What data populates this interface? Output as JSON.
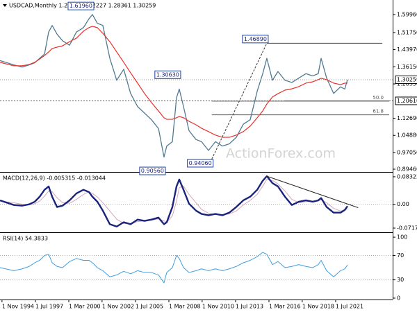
{
  "chart_data": {
    "type": "line",
    "title": "USDCAD,Monthly  1.28714 1.32227 1.28361 1.30259",
    "watermark": "ActionForex.com",
    "x": [
      1994.67,
      1995.78,
      1996.45,
      1997.0,
      1997.45,
      1997.84,
      1998.23,
      1998.56,
      1998.84,
      1999.23,
      1999.67,
      2000.23,
      2000.78,
      2001.34,
      2001.78,
      2002.06,
      2002.45,
      2002.89,
      2003.45,
      2004.0,
      2004.56,
      2005.11,
      2005.67,
      2006.23,
      2006.78,
      2007.34,
      2007.78,
      2008.0,
      2008.45,
      2008.78,
      2009.0,
      2009.34,
      2009.78,
      2010.34,
      2010.78,
      2011.34,
      2011.89,
      2012.45,
      2013.0,
      2013.56,
      2014.12,
      2014.67,
      2015.23,
      2015.67,
      2016.0,
      2016.45,
      2016.89,
      2017.45,
      2018.0,
      2018.56,
      2019.12,
      2019.67,
      2020.11,
      2020.34,
      2020.78,
      2021.34,
      2021.89,
      2022.23,
      2022.45
    ],
    "xlim": [
      1994.67,
      2026.06
    ],
    "xticks": [
      {
        "value": 1994.83,
        "label": "1 Nov 1994"
      },
      {
        "value": 1997.5,
        "label": "1 Jul 1997"
      },
      {
        "value": 2000.17,
        "label": "1 Mar 2000"
      },
      {
        "value": 2002.83,
        "label": "1 Nov 2002"
      },
      {
        "value": 2005.5,
        "label": "1 Jul 2005"
      },
      {
        "value": 2008.17,
        "label": "1 Mar 2008"
      },
      {
        "value": 2010.83,
        "label": "1 Nov 2010"
      },
      {
        "value": 2013.5,
        "label": "1 Jul 2013"
      },
      {
        "value": 2016.17,
        "label": "1 Mar 2016"
      },
      {
        "value": 2018.83,
        "label": "1 Nov 2018"
      },
      {
        "value": 2021.5,
        "label": "1 Jul 2021"
      }
    ],
    "ylim": [
      0.882,
      1.666
    ],
    "yticks": [
      {
        "value": 1.5996,
        "label": "1.59960"
      },
      {
        "value": 1.5175,
        "label": "1.51750"
      },
      {
        "value": 1.4397,
        "label": "1.43970"
      },
      {
        "value": 1.3615,
        "label": "1.36150"
      },
      {
        "value": 1.2833,
        "label": "1.28330"
      },
      {
        "value": 1.1269,
        "label": "1.12690"
      },
      {
        "value": 1.0488,
        "label": "1.04880"
      },
      {
        "value": 0.9705,
        "label": "0.97050"
      },
      {
        "value": 0.8946,
        "label": "0.89460"
      }
    ],
    "series": [
      {
        "color": "#4f7a92",
        "values": [
          1.39,
          1.37,
          1.36,
          1.37,
          1.38,
          1.4,
          1.42,
          1.52,
          1.55,
          1.51,
          1.48,
          1.46,
          1.52,
          1.54,
          1.58,
          1.6,
          1.56,
          1.55,
          1.4,
          1.3,
          1.35,
          1.24,
          1.18,
          1.15,
          1.12,
          1.08,
          0.95,
          1.0,
          1.02,
          1.22,
          1.26,
          1.18,
          1.07,
          1.03,
          1.02,
          0.98,
          1.02,
          1.0,
          1.01,
          1.04,
          1.1,
          1.12,
          1.25,
          1.33,
          1.4,
          1.3,
          1.34,
          1.3,
          1.29,
          1.31,
          1.33,
          1.32,
          1.33,
          1.4,
          1.31,
          1.24,
          1.27,
          1.26,
          1.30259
        ]
      },
      {
        "color": "#e8302a",
        "values": [
          1.382,
          1.366,
          1.366,
          1.372,
          1.382,
          1.397,
          1.413,
          1.429,
          1.445,
          1.451,
          1.457,
          1.476,
          1.492,
          1.524,
          1.54,
          1.546,
          1.54,
          1.514,
          1.476,
          1.429,
          1.382,
          1.334,
          1.287,
          1.239,
          1.198,
          1.16,
          1.129,
          1.122,
          1.122,
          1.129,
          1.135,
          1.129,
          1.113,
          1.097,
          1.081,
          1.066,
          1.05,
          1.04,
          1.04,
          1.05,
          1.066,
          1.091,
          1.129,
          1.16,
          1.192,
          1.224,
          1.239,
          1.255,
          1.261,
          1.271,
          1.287,
          1.293,
          1.303,
          1.309,
          1.303,
          1.287,
          1.28,
          1.287,
          1.287
        ]
      }
    ],
    "current": {
      "value": 1.30259,
      "label": "1.30259"
    },
    "support": {
      "value": 1.2061,
      "label": "1.20610"
    },
    "annotations": [
      {
        "x": 2002.06,
        "value": 1.6196,
        "label": "1.61960",
        "kind": "high"
      },
      {
        "x": 2009.0,
        "value": 1.3063,
        "label": "1.30630",
        "kind": "high"
      },
      {
        "x": 2016.0,
        "value": 1.4689,
        "label": "1.46890",
        "kind": "high"
      },
      {
        "x": 2007.78,
        "value": 0.9056,
        "label": "0.90560",
        "kind": "low"
      },
      {
        "x": 2011.6,
        "value": 0.9406,
        "label": "0.94060",
        "kind": "low"
      }
    ],
    "fibonacci": {
      "levels": [
        {
          "value": 50,
          "label": "50.0"
        },
        {
          "value": 61.8,
          "label": "61.8"
        }
      ]
    },
    "macd": {
      "title": "MACD(12,26,9) -0.005315 -0.013044",
      "ylim": [
        -0.0822,
        0.0936
      ],
      "yticks": [
        0.083225,
        {
          "value": 0,
          "label": "0.00"
        },
        -0.071752
      ],
      "series": [
        {
          "color": "#1a237e",
          "values": [
            0.012,
            -0.002,
            -0.004,
            0,
            0.008,
            0.023,
            0.044,
            0.054,
            0.023,
            -0.008,
            -0.004,
            0.012,
            0.033,
            0.044,
            0.037,
            0.023,
            0.008,
            -0.019,
            -0.06,
            -0.067,
            -0.054,
            -0.06,
            -0.046,
            -0.05,
            -0.046,
            -0.04,
            -0.06,
            -0.054,
            -0.008,
            0.054,
            0.075,
            0.044,
            0.002,
            -0.019,
            -0.029,
            -0.033,
            -0.029,
            -0.033,
            -0.025,
            -0.008,
            0.012,
            0.023,
            0.044,
            0.071,
            0.085,
            0.064,
            0.054,
            0.023,
            -0.002,
            0.008,
            0.012,
            0.008,
            0.012,
            0.019,
            -0.008,
            -0.025,
            -0.025,
            -0.017,
            -0.005315
          ]
        },
        {
          "color": "#d2a6b8",
          "values": [
            0.01,
            0.005,
            0,
            -0.002,
            0.002,
            0.01,
            0.025,
            0.04,
            0.038,
            0.02,
            0.005,
            0.003,
            0.015,
            0.03,
            0.038,
            0.033,
            0.022,
            0.005,
            -0.02,
            -0.045,
            -0.058,
            -0.058,
            -0.052,
            -0.05,
            -0.048,
            -0.044,
            -0.05,
            -0.055,
            -0.035,
            0.01,
            0.05,
            0.055,
            0.03,
            0.005,
            -0.015,
            -0.027,
            -0.03,
            -0.031,
            -0.029,
            -0.02,
            -0.002,
            0.012,
            0.03,
            0.055,
            0.075,
            0.072,
            0.062,
            0.04,
            0.015,
            0.005,
            0.008,
            0.009,
            0.01,
            0.014,
            0.005,
            -0.012,
            -0.02,
            -0.018,
            -0.013044
          ]
        }
      ],
      "trendline": {
        "x": [
          2016.0,
          2023.3
        ],
        "y": [
          0.085,
          -0.01
        ]
      }
    },
    "rsi": {
      "title": "RSI(14) 54.3833",
      "ylim": [
        -2.3,
        106.9
      ],
      "yticks": [
        100,
        70,
        30,
        0
      ],
      "levels": [
        70,
        30
      ],
      "series": [
        {
          "color": "#3d9ee0",
          "values": [
            50,
            45,
            48,
            52,
            58,
            62,
            70,
            72,
            58,
            52,
            50,
            60,
            65,
            62,
            62,
            58,
            50,
            45,
            35,
            38,
            44,
            40,
            45,
            42,
            42,
            38,
            25,
            42,
            50,
            70,
            65,
            50,
            42,
            45,
            48,
            45,
            48,
            45,
            48,
            52,
            58,
            62,
            68,
            75,
            72,
            55,
            60,
            50,
            52,
            55,
            52,
            50,
            55,
            62,
            45,
            35,
            45,
            48,
            54.3833
          ]
        }
      ]
    }
  }
}
